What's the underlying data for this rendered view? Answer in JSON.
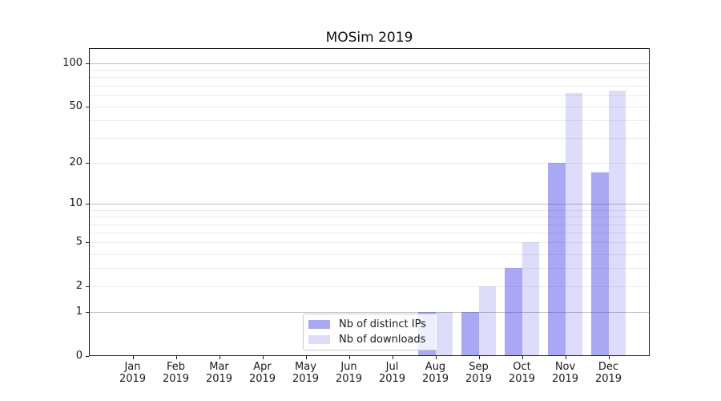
{
  "chart_data": {
    "type": "bar",
    "title": "MOSim 2019",
    "categories": [
      "Jan 2019",
      "Feb 2019",
      "Mar 2019",
      "Apr 2019",
      "May 2019",
      "Jun 2019",
      "Jul 2019",
      "Aug 2019",
      "Sep 2019",
      "Oct 2019",
      "Nov 2019",
      "Dec 2019"
    ],
    "series": [
      {
        "key": "distinct-ips",
        "name": "Nb of distinct IPs",
        "display_color": "#a8a8f5",
        "alpha": 0.435,
        "values": [
          0,
          0,
          0,
          0,
          0,
          0,
          0,
          1,
          1,
          3,
          20,
          17
        ]
      },
      {
        "key": "downloads",
        "name": "Nb of downloads",
        "display_color": "#ddddfa",
        "alpha": 0.17,
        "values": [
          0,
          0,
          0,
          0,
          0,
          0,
          0,
          1,
          2,
          5,
          62,
          65
        ]
      }
    ],
    "yscale": "log1p",
    "ylim": [
      0,
      127.5
    ],
    "yticks": [
      0,
      1,
      2,
      5,
      10,
      20,
      50,
      100
    ],
    "major_gridlines": [
      1,
      10,
      100
    ],
    "minor_gridlines": [
      2,
      3,
      4,
      5,
      6,
      7,
      8,
      9,
      20,
      30,
      40,
      50,
      60,
      70,
      80,
      90
    ],
    "grid": true,
    "legend_position": "bottom-center",
    "colors": {
      "bar_base": "#3737e8",
      "major_grid": "#bfbfbf",
      "minor_grid": "#ebebeb",
      "axis": "#1a1a1a",
      "legend_border": "#cbcbcb"
    }
  }
}
